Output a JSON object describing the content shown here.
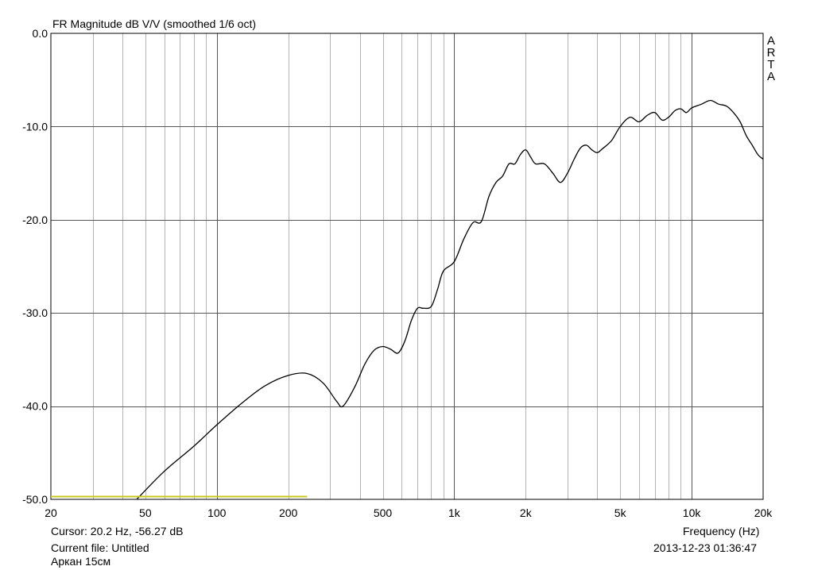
{
  "chart_data": {
    "type": "line",
    "title": "FR Magnitude dB V/V (smoothed 1/6 oct)",
    "xlabel": "Frequency (Hz)",
    "ylabel": "",
    "x_scale": "log",
    "xlim": [
      20,
      20000
    ],
    "ylim": [
      -50,
      0
    ],
    "grid": true,
    "x_ticks": [
      {
        "value": 20,
        "label": "20"
      },
      {
        "value": 50,
        "label": "50"
      },
      {
        "value": 100,
        "label": "100"
      },
      {
        "value": 200,
        "label": "200"
      },
      {
        "value": 500,
        "label": "500"
      },
      {
        "value": 1000,
        "label": "1k"
      },
      {
        "value": 2000,
        "label": "2k"
      },
      {
        "value": 5000,
        "label": "5k"
      },
      {
        "value": 10000,
        "label": "10k"
      },
      {
        "value": 20000,
        "label": "20k"
      }
    ],
    "y_ticks": [
      {
        "value": 0,
        "label": "0.0"
      },
      {
        "value": -10,
        "label": "-10.0"
      },
      {
        "value": -20,
        "label": "-20.0"
      },
      {
        "value": -30,
        "label": "-30.0"
      },
      {
        "value": -40,
        "label": "-40.0"
      },
      {
        "value": -50,
        "label": "-50.0"
      }
    ],
    "series": [
      {
        "color": "#000000",
        "x": [
          46,
          60,
          80,
          100,
          130,
          160,
          200,
          240,
          280,
          320,
          340,
          380,
          420,
          460,
          500,
          540,
          580,
          620,
          660,
          700,
          740,
          800,
          850,
          900,
          1000,
          1100,
          1200,
          1300,
          1400,
          1500,
          1600,
          1700,
          1800,
          1900,
          2000,
          2100,
          2200,
          2400,
          2600,
          2800,
          3000,
          3200,
          3400,
          3600,
          3800,
          4000,
          4200,
          4600,
          5000,
          5500,
          6000,
          6500,
          7000,
          7500,
          8000,
          8500,
          9000,
          9500,
          10000,
          11000,
          12000,
          13000,
          14000,
          15000,
          16000,
          17000,
          18000,
          19000,
          20000
        ],
        "y": [
          -50.0,
          -47.0,
          -44.3,
          -42.0,
          -39.5,
          -37.8,
          -36.7,
          -36.5,
          -37.5,
          -39.5,
          -40.0,
          -38.0,
          -35.5,
          -34.0,
          -33.6,
          -33.9,
          -34.3,
          -33.0,
          -30.8,
          -29.5,
          -29.5,
          -29.3,
          -27.5,
          -25.5,
          -24.5,
          -22.0,
          -20.3,
          -20.2,
          -17.5,
          -16.0,
          -15.3,
          -14.0,
          -14.0,
          -13.0,
          -12.5,
          -13.3,
          -14.0,
          -14.0,
          -15.0,
          -16.0,
          -15.0,
          -13.5,
          -12.3,
          -12.0,
          -12.5,
          -12.8,
          -12.4,
          -11.5,
          -10.0,
          -9.0,
          -9.5,
          -8.8,
          -8.5,
          -9.3,
          -9.0,
          -8.3,
          -8.1,
          -8.5,
          -8.0,
          -7.6,
          -7.2,
          -7.6,
          -7.8,
          -8.5,
          -9.5,
          -11.0,
          -12.0,
          -13.0,
          -13.5
        ]
      },
      {
        "color": "#c8c820",
        "x": [
          20,
          240
        ],
        "y": [
          -49.7,
          -49.7
        ]
      }
    ],
    "annotations": {
      "logo": [
        "A",
        "R",
        "T",
        "A"
      ],
      "cursor": "Cursor: 20.2 Hz, -56.27 dB",
      "current_file": "Current file: Untitled",
      "file_name": "Аркан 15см",
      "datetime": "2013-12-23  01:36:47"
    }
  }
}
